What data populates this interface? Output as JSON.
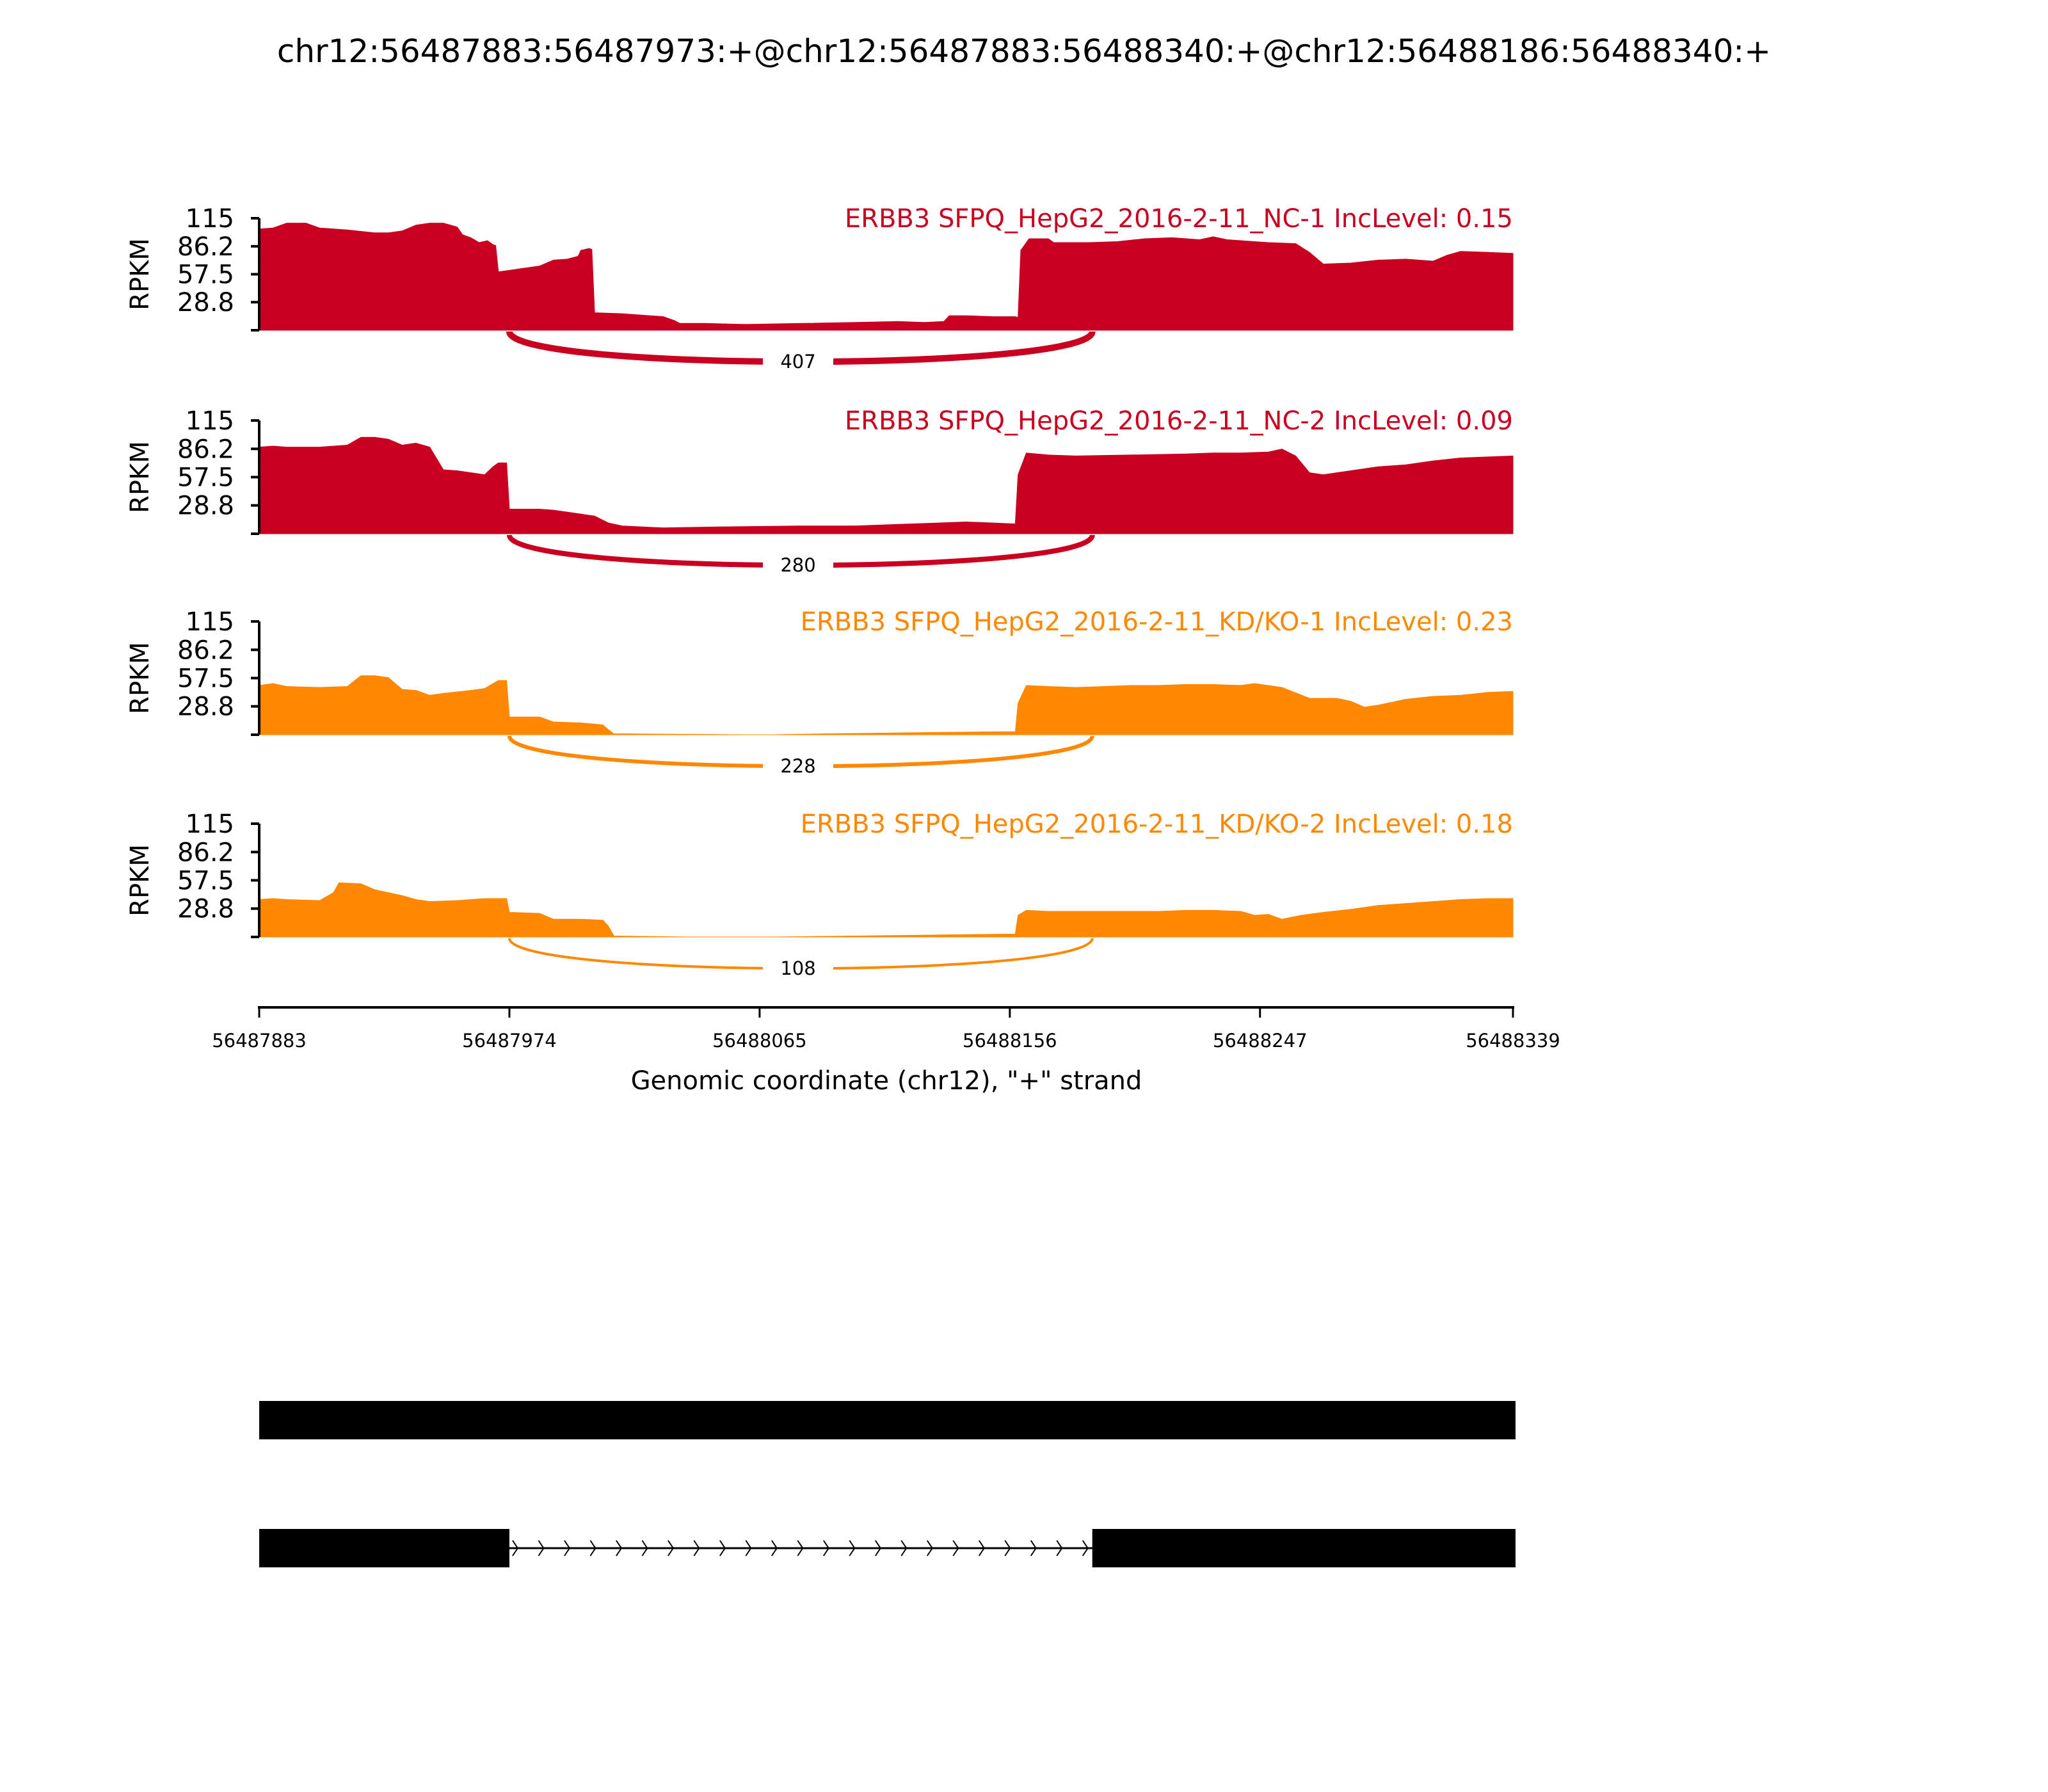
{
  "chart_data": {
    "type": "area",
    "title": "chr12:56487883:56487973:+@chr12:56487883:56488340:+@chr12:56488186:56488340:+",
    "xlabel": "Genomic coordinate (chr12), \"+\" strand",
    "ylabel": "RPKM",
    "xlim": [
      56487883,
      56488339
    ],
    "x_ticks": [
      "56487883",
      "56487974",
      "56488065",
      "56488156",
      "56488247",
      "56488339"
    ],
    "ylim": [
      0,
      115
    ],
    "y_ticks": [
      "115",
      "86.2",
      "57.5",
      "28.8"
    ],
    "junction": {
      "start": 56487974,
      "end": 56488186
    },
    "panels": [
      {
        "label": "ERBB3 SFPQ_HepG2_2016-2-11_NC-1 IncLevel: 0.15",
        "color": "#ca0020",
        "junction_count": "407",
        "profile": [
          [
            56487883,
            104
          ],
          [
            56487888,
            105
          ],
          [
            56487893,
            110
          ],
          [
            56487900,
            110
          ],
          [
            56487905,
            105
          ],
          [
            56487915,
            103
          ],
          [
            56487925,
            100
          ],
          [
            56487930,
            100
          ],
          [
            56487935,
            102
          ],
          [
            56487940,
            108
          ],
          [
            56487945,
            110
          ],
          [
            56487950,
            110
          ],
          [
            56487955,
            106
          ],
          [
            56487957,
            98
          ],
          [
            56487960,
            95
          ],
          [
            56487963,
            90
          ],
          [
            56487966,
            92
          ],
          [
            56487968,
            88
          ],
          [
            56487969,
            87
          ],
          [
            56487970,
            60
          ],
          [
            56487975,
            62
          ],
          [
            56487980,
            64
          ],
          [
            56487985,
            66
          ],
          [
            56487990,
            72
          ],
          [
            56487995,
            73
          ],
          [
            56487999,
            76
          ],
          [
            56488000,
            82
          ],
          [
            56488003,
            84
          ],
          [
            56488004,
            83
          ],
          [
            56488005,
            18
          ],
          [
            56488015,
            17
          ],
          [
            56488025,
            15
          ],
          [
            56488030,
            14
          ],
          [
            56488034,
            10
          ],
          [
            56488036,
            7
          ],
          [
            56488045,
            7
          ],
          [
            56488060,
            6
          ],
          [
            56488080,
            7
          ],
          [
            56488100,
            8
          ],
          [
            56488115,
            9
          ],
          [
            56488125,
            8
          ],
          [
            56488132,
            9
          ],
          [
            56488134,
            15
          ],
          [
            56488140,
            15
          ],
          [
            56488150,
            14
          ],
          [
            56488158,
            14
          ],
          [
            56488159,
            13
          ],
          [
            56488160,
            82
          ],
          [
            56488163,
            94
          ],
          [
            56488170,
            94
          ],
          [
            56488172,
            90
          ],
          [
            56488185,
            90
          ],
          [
            56488195,
            91
          ],
          [
            56488205,
            94
          ],
          [
            56488215,
            95
          ],
          [
            56488225,
            93
          ],
          [
            56488230,
            96
          ],
          [
            56488235,
            93
          ],
          [
            56488240,
            92
          ],
          [
            56488250,
            90
          ],
          [
            56488260,
            89
          ],
          [
            56488265,
            80
          ],
          [
            56488270,
            68
          ],
          [
            56488280,
            69
          ],
          [
            56488290,
            72
          ],
          [
            56488300,
            73
          ],
          [
            56488310,
            71
          ],
          [
            56488315,
            77
          ],
          [
            56488320,
            81
          ],
          [
            56488330,
            80
          ],
          [
            56488339,
            79
          ]
        ]
      },
      {
        "label": "ERBB3 SFPQ_HepG2_2016-2-11_NC-2 IncLevel: 0.09",
        "color": "#ca0020",
        "junction_count": "280",
        "profile": [
          [
            56487883,
            88
          ],
          [
            56487888,
            89
          ],
          [
            56487893,
            88
          ],
          [
            56487905,
            88
          ],
          [
            56487915,
            90
          ],
          [
            56487920,
            98
          ],
          [
            56487925,
            98
          ],
          [
            56487930,
            96
          ],
          [
            56487935,
            90
          ],
          [
            56487940,
            92
          ],
          [
            56487945,
            88
          ],
          [
            56487950,
            65
          ],
          [
            56487955,
            64
          ],
          [
            56487960,
            62
          ],
          [
            56487965,
            60
          ],
          [
            56487968,
            68
          ],
          [
            56487970,
            72
          ],
          [
            56487973,
            72
          ],
          [
            56487974,
            25
          ],
          [
            56487985,
            25
          ],
          [
            56487990,
            24
          ],
          [
            56487995,
            22
          ],
          [
            56488000,
            20
          ],
          [
            56488005,
            18
          ],
          [
            56488010,
            11
          ],
          [
            56488015,
            8
          ],
          [
            56488030,
            6
          ],
          [
            56488050,
            7
          ],
          [
            56488080,
            8
          ],
          [
            56488100,
            8
          ],
          [
            56488120,
            10
          ],
          [
            56488130,
            11
          ],
          [
            56488140,
            12
          ],
          [
            56488150,
            11
          ],
          [
            56488158,
            10
          ],
          [
            56488159,
            60
          ],
          [
            56488162,
            82
          ],
          [
            56488170,
            80
          ],
          [
            56488180,
            79
          ],
          [
            56488200,
            80
          ],
          [
            56488220,
            81
          ],
          [
            56488230,
            82
          ],
          [
            56488240,
            82
          ],
          [
            56488250,
            83
          ],
          [
            56488255,
            86
          ],
          [
            56488260,
            79
          ],
          [
            56488265,
            62
          ],
          [
            56488270,
            60
          ],
          [
            56488280,
            64
          ],
          [
            56488290,
            68
          ],
          [
            56488300,
            70
          ],
          [
            56488310,
            74
          ],
          [
            56488320,
            77
          ],
          [
            56488330,
            78
          ],
          [
            56488339,
            79
          ]
        ]
      },
      {
        "label": "ERBB3 SFPQ_HepG2_2016-2-11_KD/KO-1 IncLevel: 0.23",
        "color": "#ff8800",
        "junction_count": "228",
        "profile": [
          [
            56487883,
            50
          ],
          [
            56487888,
            52
          ],
          [
            56487893,
            49
          ],
          [
            56487905,
            48
          ],
          [
            56487915,
            49
          ],
          [
            56487920,
            60
          ],
          [
            56487925,
            60
          ],
          [
            56487930,
            58
          ],
          [
            56487935,
            46
          ],
          [
            56487940,
            45
          ],
          [
            56487945,
            40
          ],
          [
            56487950,
            42
          ],
          [
            56487960,
            45
          ],
          [
            56487965,
            47
          ],
          [
            56487970,
            55
          ],
          [
            56487973,
            55
          ],
          [
            56487974,
            18
          ],
          [
            56487985,
            18
          ],
          [
            56487990,
            13
          ],
          [
            56488000,
            12
          ],
          [
            56488008,
            10
          ],
          [
            56488010,
            5
          ],
          [
            56488012,
            1
          ],
          [
            56488060,
            0
          ],
          [
            56488070,
            0
          ],
          [
            56488090,
            1
          ],
          [
            56488120,
            2
          ],
          [
            56488150,
            3
          ],
          [
            56488158,
            3
          ],
          [
            56488159,
            32
          ],
          [
            56488162,
            50
          ],
          [
            56488170,
            49
          ],
          [
            56488180,
            48
          ],
          [
            56488190,
            49
          ],
          [
            56488200,
            50
          ],
          [
            56488210,
            50
          ],
          [
            56488220,
            51
          ],
          [
            56488230,
            51
          ],
          [
            56488240,
            50
          ],
          [
            56488245,
            52
          ],
          [
            56488255,
            48
          ],
          [
            56488265,
            37
          ],
          [
            56488275,
            37
          ],
          [
            56488280,
            34
          ],
          [
            56488285,
            28
          ],
          [
            56488290,
            30
          ],
          [
            56488300,
            36
          ],
          [
            56488310,
            39
          ],
          [
            56488320,
            40
          ],
          [
            56488330,
            43
          ],
          [
            56488339,
            44
          ]
        ]
      },
      {
        "label": "ERBB3 SFPQ_HepG2_2016-2-11_KD/KO-2 IncLevel: 0.18",
        "color": "#ff8800",
        "junction_count": "108",
        "profile": [
          [
            56487883,
            38
          ],
          [
            56487888,
            39
          ],
          [
            56487893,
            38
          ],
          [
            56487905,
            37
          ],
          [
            56487910,
            45
          ],
          [
            56487912,
            55
          ],
          [
            56487920,
            54
          ],
          [
            56487925,
            48
          ],
          [
            56487930,
            45
          ],
          [
            56487935,
            42
          ],
          [
            56487940,
            38
          ],
          [
            56487945,
            36
          ],
          [
            56487955,
            37
          ],
          [
            56487960,
            38
          ],
          [
            56487965,
            39
          ],
          [
            56487973,
            39
          ],
          [
            56487974,
            25
          ],
          [
            56487985,
            24
          ],
          [
            56487990,
            18
          ],
          [
            56488000,
            18
          ],
          [
            56488008,
            17
          ],
          [
            56488010,
            11
          ],
          [
            56488012,
            1
          ],
          [
            56488040,
            0
          ],
          [
            56488070,
            0
          ],
          [
            56488100,
            1
          ],
          [
            56488130,
            2
          ],
          [
            56488158,
            3
          ],
          [
            56488159,
            22
          ],
          [
            56488162,
            27
          ],
          [
            56488170,
            26
          ],
          [
            56488190,
            26
          ],
          [
            56488210,
            26
          ],
          [
            56488220,
            27
          ],
          [
            56488230,
            27
          ],
          [
            56488240,
            26
          ],
          [
            56488245,
            22
          ],
          [
            56488250,
            23
          ],
          [
            56488255,
            18
          ],
          [
            56488262,
            22
          ],
          [
            56488270,
            25
          ],
          [
            56488280,
            28
          ],
          [
            56488290,
            32
          ],
          [
            56488300,
            34
          ],
          [
            56488310,
            36
          ],
          [
            56488320,
            38
          ],
          [
            56488330,
            39
          ],
          [
            56488339,
            39
          ]
        ]
      }
    ],
    "gene_models": [
      {
        "exons": [
          [
            56487883,
            56488339
          ]
        ]
      },
      {
        "exons": [
          [
            56487883,
            56487974
          ],
          [
            56488186,
            56488339
          ]
        ],
        "intron_arrows": 23
      }
    ]
  }
}
